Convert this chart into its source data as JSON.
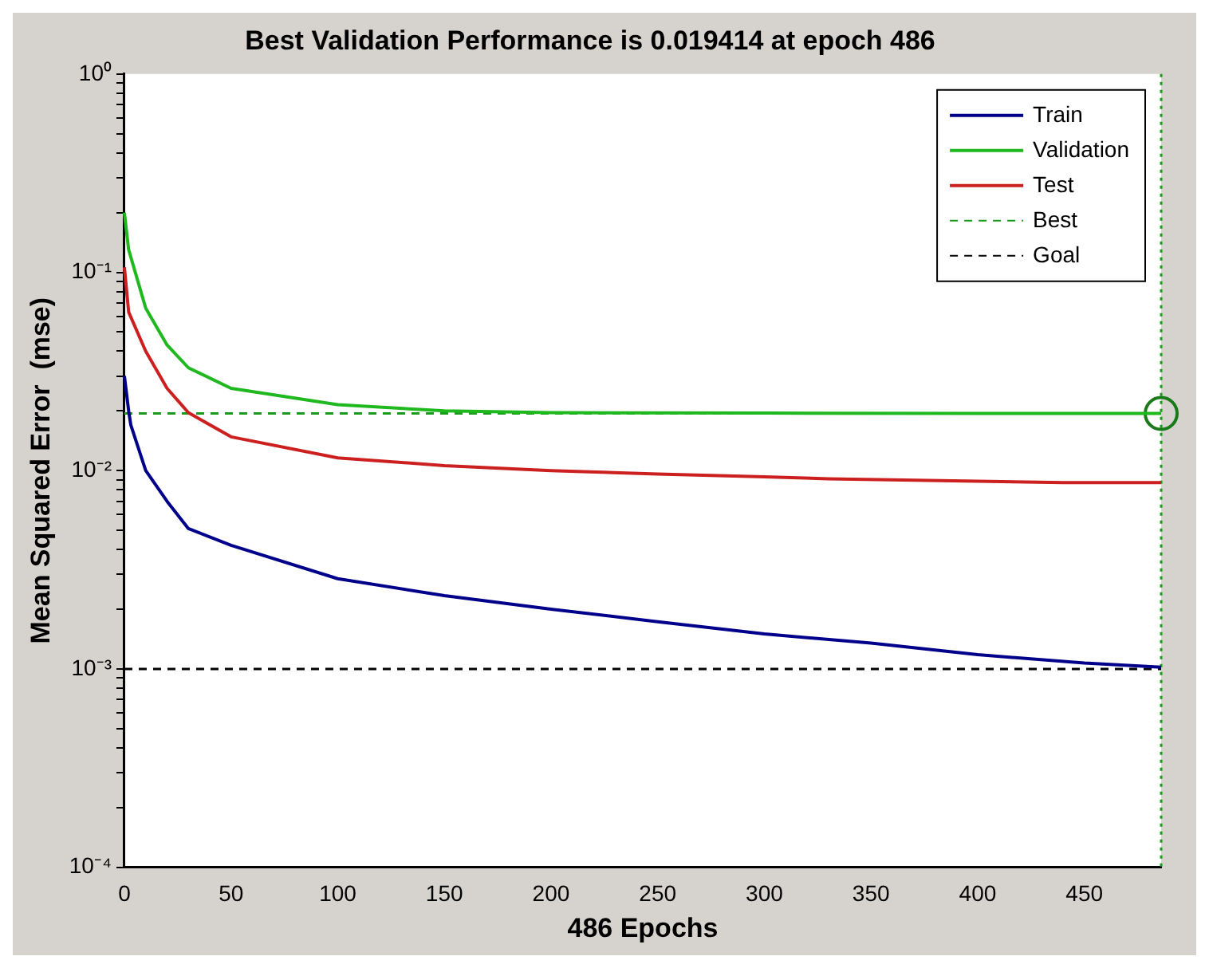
{
  "chart_data": {
    "type": "line",
    "title": "Best Validation Performance is 0.019414 at epoch 486",
    "xlabel": "486 Epochs",
    "ylabel": "Mean Squared Error  (mse)",
    "xlim": [
      0,
      486
    ],
    "xticks": [
      0,
      50,
      100,
      150,
      200,
      250,
      300,
      350,
      400,
      450
    ],
    "ylim": [
      0.0001,
      1
    ],
    "yticks": [
      {
        "value": 0.0001,
        "label": "10⁻⁴"
      },
      {
        "value": 0.0002,
        "label": null
      },
      {
        "value": 0.0003,
        "label": null
      },
      {
        "value": 0.0004,
        "label": null
      },
      {
        "value": 0.0005,
        "label": null
      },
      {
        "value": 0.0006,
        "label": null
      },
      {
        "value": 0.0007,
        "label": null
      },
      {
        "value": 0.0008,
        "label": null
      },
      {
        "value": 0.0009,
        "label": null
      },
      {
        "value": 0.001,
        "label": "10⁻³"
      },
      {
        "value": 0.002,
        "label": null
      },
      {
        "value": 0.003,
        "label": null
      },
      {
        "value": 0.004,
        "label": null
      },
      {
        "value": 0.005,
        "label": null
      },
      {
        "value": 0.006,
        "label": null
      },
      {
        "value": 0.007,
        "label": null
      },
      {
        "value": 0.008,
        "label": null
      },
      {
        "value": 0.009,
        "label": null
      },
      {
        "value": 0.01,
        "label": "10⁻²"
      },
      {
        "value": 0.02,
        "label": null
      },
      {
        "value": 0.03,
        "label": null
      },
      {
        "value": 0.04,
        "label": null
      },
      {
        "value": 0.05,
        "label": null
      },
      {
        "value": 0.06,
        "label": null
      },
      {
        "value": 0.07,
        "label": null
      },
      {
        "value": 0.08,
        "label": null
      },
      {
        "value": 0.09,
        "label": null
      },
      {
        "value": 0.1,
        "label": "10⁻¹"
      },
      {
        "value": 0.2,
        "label": null
      },
      {
        "value": 0.3,
        "label": null
      },
      {
        "value": 0.4,
        "label": null
      },
      {
        "value": 0.5,
        "label": null
      },
      {
        "value": 0.6,
        "label": null
      },
      {
        "value": 0.7,
        "label": null
      },
      {
        "value": 0.8,
        "label": null
      },
      {
        "value": 0.9,
        "label": null
      },
      {
        "value": 1,
        "label": "10⁰"
      }
    ],
    "log": "y",
    "legend": "top right",
    "marker": "none",
    "line_style": "solid",
    "series": [
      {
        "name": "Train",
        "color": "#00008b",
        "x": [
          0,
          2,
          3,
          10,
          20,
          30,
          50,
          100,
          150,
          200,
          250,
          300,
          350,
          400,
          450,
          486
        ],
        "values": [
          0.03,
          0.02,
          0.017,
          0.01,
          0.007,
          0.0051,
          0.0042,
          0.00285,
          0.00234,
          0.002,
          0.00173,
          0.0015,
          0.00135,
          0.00118,
          0.00107,
          0.00102
        ]
      },
      {
        "name": "Validation",
        "color": "#1fb81f",
        "x": [
          0,
          2,
          10,
          20,
          30,
          50,
          100,
          150,
          200,
          300,
          400,
          486
        ],
        "values": [
          0.2,
          0.13,
          0.066,
          0.043,
          0.033,
          0.026,
          0.0215,
          0.02,
          0.0196,
          0.0195,
          0.0194,
          0.019414
        ]
      },
      {
        "name": "Test",
        "color": "#cc1f1f",
        "x": [
          0,
          2,
          10,
          20,
          30,
          50,
          100,
          150,
          200,
          250,
          300,
          330,
          440,
          486
        ],
        "values": [
          0.106,
          0.063,
          0.04,
          0.026,
          0.0196,
          0.0148,
          0.0116,
          0.0106,
          0.01,
          0.0096,
          0.0093,
          0.0091,
          0.0087,
          0.0087
        ]
      },
      {
        "type": "scatter",
        "color": "#1a7a1a",
        "marker": "circle",
        "x": [
          486
        ],
        "values": [
          0.019414
        ]
      }
    ],
    "ref_lines": [
      {
        "axis": "y",
        "value": 0.019414,
        "label": "Best",
        "color": "#1a9a1a",
        "line_style": "dashed"
      },
      {
        "axis": "x",
        "value": 486,
        "color": "#1a9a1a",
        "line_style": "dotted"
      },
      {
        "axis": "y",
        "value": 0.001,
        "label": "Goal",
        "color": "#000000",
        "line_style": "dashed"
      }
    ]
  }
}
